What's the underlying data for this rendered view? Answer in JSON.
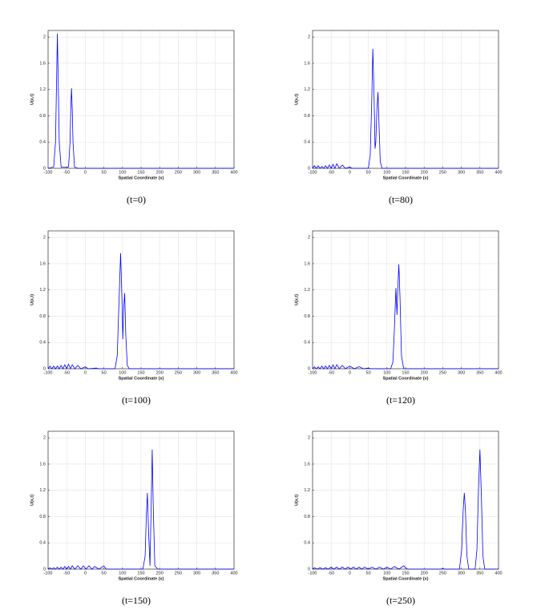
{
  "chart_data": [
    {
      "type": "line",
      "caption": "(t=0)",
      "xlabel": "Spatial Coordinate (x)",
      "ylabel": "U(x,t)",
      "color": "#0000ff",
      "grid": true,
      "xlim": [
        -100,
        400
      ],
      "xticks": [
        -100,
        -50,
        0,
        50,
        100,
        150,
        200,
        250,
        300,
        350,
        400
      ],
      "ylim": [
        0,
        2.1
      ],
      "yticks": [
        0,
        0.4,
        0.8,
        1.2,
        1.6,
        2
      ],
      "x": [
        -100,
        -85,
        -80,
        -77,
        -75,
        -73,
        -70,
        -65,
        -45,
        -41,
        -39,
        -37,
        -35,
        -33,
        -29,
        -20,
        400
      ],
      "values": [
        0,
        0.02,
        0.4,
        1.4,
        2.05,
        1.4,
        0.4,
        0.02,
        0.02,
        0.4,
        0.9,
        1.22,
        0.9,
        0.4,
        0.02,
        0,
        0
      ]
    },
    {
      "type": "line",
      "caption": "(t=80)",
      "xlabel": "Spatial Coordinate (x)",
      "ylabel": "U(x,t)",
      "color": "#0000ff",
      "grid": true,
      "xlim": [
        -100,
        400
      ],
      "xticks": [
        -100,
        -50,
        0,
        50,
        100,
        150,
        200,
        250,
        300,
        350,
        400
      ],
      "ylim": [
        0,
        2.1
      ],
      "yticks": [
        0,
        0.4,
        0.8,
        1.2,
        1.6,
        2
      ],
      "x": [
        -100,
        -95,
        -90,
        -85,
        -80,
        -75,
        -70,
        -65,
        -60,
        -55,
        -50,
        -45,
        -40,
        -35,
        -28,
        -20,
        -12,
        0,
        6,
        50,
        55,
        59,
        62,
        65,
        68,
        70,
        73,
        76,
        79,
        82,
        87,
        400
      ],
      "values": [
        0,
        0.04,
        0,
        0.04,
        0,
        0.03,
        0,
        0.04,
        0,
        0.05,
        0,
        0.06,
        0,
        0.07,
        0,
        0.05,
        0,
        0.02,
        0,
        0,
        0.2,
        1.0,
        1.82,
        1.2,
        0.3,
        0.4,
        0.9,
        1.16,
        0.6,
        0.1,
        0,
        0
      ]
    },
    {
      "type": "line",
      "caption": "(t=100)",
      "xlabel": "Spatial Coordinate (x)",
      "ylabel": "U(x,t)",
      "color": "#0000ff",
      "grid": true,
      "xlim": [
        -100,
        400
      ],
      "xticks": [
        -100,
        -50,
        0,
        50,
        100,
        150,
        200,
        250,
        300,
        350,
        400
      ],
      "ylim": [
        0,
        2.1
      ],
      "yticks": [
        0,
        0.4,
        0.8,
        1.2,
        1.6,
        2
      ],
      "x": [
        -100,
        -95,
        -90,
        -85,
        -80,
        -75,
        -70,
        -65,
        -60,
        -55,
        -50,
        -45,
        -40,
        -35,
        -28,
        -20,
        -12,
        0,
        8,
        30,
        36,
        80,
        86,
        90,
        95,
        98,
        101,
        103,
        106,
        109,
        113,
        118,
        400
      ],
      "values": [
        0,
        0.04,
        0,
        0.04,
        0,
        0.04,
        0,
        0.05,
        0,
        0.06,
        0,
        0.07,
        0,
        0.06,
        0,
        0.05,
        0,
        0.03,
        0,
        0.01,
        0,
        0,
        0.2,
        0.9,
        1.76,
        1.2,
        0.45,
        0.9,
        1.15,
        0.5,
        0.05,
        0,
        0
      ]
    },
    {
      "type": "line",
      "caption": "(t=120)",
      "xlabel": "Spatial Coordinate (x)",
      "ylabel": "U(x,t)",
      "color": "#0000ff",
      "grid": true,
      "xlim": [
        -100,
        400
      ],
      "xticks": [
        -100,
        -50,
        0,
        50,
        100,
        150,
        200,
        250,
        300,
        350,
        400
      ],
      "ylim": [
        0,
        2.1
      ],
      "yticks": [
        0,
        0.4,
        0.8,
        1.2,
        1.6,
        2
      ],
      "x": [
        -100,
        -95,
        -90,
        -85,
        -80,
        -75,
        -70,
        -65,
        -60,
        -55,
        -50,
        -45,
        -40,
        -35,
        -28,
        -20,
        -12,
        0,
        12,
        25,
        37,
        50,
        56,
        110,
        116,
        120,
        124,
        127,
        129,
        132,
        135,
        139,
        145,
        400
      ],
      "values": [
        0,
        0.03,
        0,
        0.03,
        0,
        0.04,
        0,
        0.04,
        0,
        0.05,
        0,
        0.06,
        0,
        0.06,
        0,
        0.05,
        0,
        0.04,
        0,
        0.03,
        0,
        0.01,
        0,
        0,
        0.1,
        0.6,
        1.23,
        0.82,
        1.2,
        1.59,
        1.1,
        0.2,
        0,
        0
      ]
    },
    {
      "type": "line",
      "caption": "(t=150)",
      "xlabel": "Spatial Coordinate (x)",
      "ylabel": "U(x,t)",
      "color": "#0000ff",
      "grid": true,
      "xlim": [
        -100,
        400
      ],
      "xticks": [
        -100,
        -50,
        0,
        50,
        100,
        150,
        200,
        250,
        300,
        350,
        400
      ],
      "ylim": [
        0,
        2.1
      ],
      "yticks": [
        0,
        0.4,
        0.8,
        1.2,
        1.6,
        2
      ],
      "x": [
        -100,
        -95,
        -90,
        -85,
        -80,
        -75,
        -70,
        -65,
        -60,
        -55,
        -50,
        -45,
        -40,
        -35,
        -28,
        -20,
        -12,
        -5,
        2,
        10,
        18,
        25,
        37,
        50,
        56,
        155,
        161,
        164,
        167,
        170,
        174,
        177,
        180,
        183,
        187,
        195,
        400
      ],
      "values": [
        0,
        0.02,
        0,
        0.02,
        0,
        0.03,
        0,
        0.03,
        0,
        0.04,
        0,
        0.04,
        0,
        0.05,
        0,
        0.05,
        0,
        0.05,
        0,
        0.05,
        0,
        0.04,
        0,
        0.05,
        0,
        0,
        0.2,
        0.8,
        1.16,
        0.6,
        0.05,
        0.9,
        1.82,
        0.9,
        0.05,
        0,
        0
      ]
    },
    {
      "type": "line",
      "caption": "(t=250)",
      "xlabel": "Spatial Coordinate (x)",
      "ylabel": "U(x,t)",
      "color": "#0000ff",
      "grid": true,
      "xlim": [
        -100,
        400
      ],
      "xticks": [
        -100,
        -50,
        0,
        50,
        100,
        150,
        200,
        250,
        300,
        350,
        400
      ],
      "ylim": [
        0,
        2.1
      ],
      "yticks": [
        0,
        0.4,
        0.8,
        1.2,
        1.6,
        2
      ],
      "x": [
        -100,
        -95,
        -88,
        -80,
        -72,
        -65,
        -58,
        -50,
        -43,
        -35,
        -28,
        -20,
        -12,
        -5,
        2,
        10,
        18,
        25,
        32,
        40,
        50,
        60,
        70,
        80,
        90,
        100,
        110,
        120,
        132,
        145,
        155,
        245,
        250,
        255,
        295,
        301,
        305,
        308,
        311,
        315,
        320,
        337,
        342,
        346,
        350,
        354,
        358,
        363,
        400
      ],
      "values": [
        0,
        0.02,
        0,
        0.02,
        0,
        0.02,
        0,
        0.03,
        0,
        0.03,
        0,
        0.03,
        0,
        0.03,
        0,
        0.03,
        0,
        0.03,
        0,
        0.03,
        0,
        0.03,
        0,
        0.03,
        0,
        0.03,
        0,
        0.04,
        0,
        0.05,
        0,
        0,
        0.01,
        0,
        0,
        0.3,
        0.9,
        1.16,
        0.9,
        0.2,
        0,
        0,
        0.3,
        1.2,
        1.82,
        1.1,
        0.2,
        0,
        0
      ]
    }
  ]
}
